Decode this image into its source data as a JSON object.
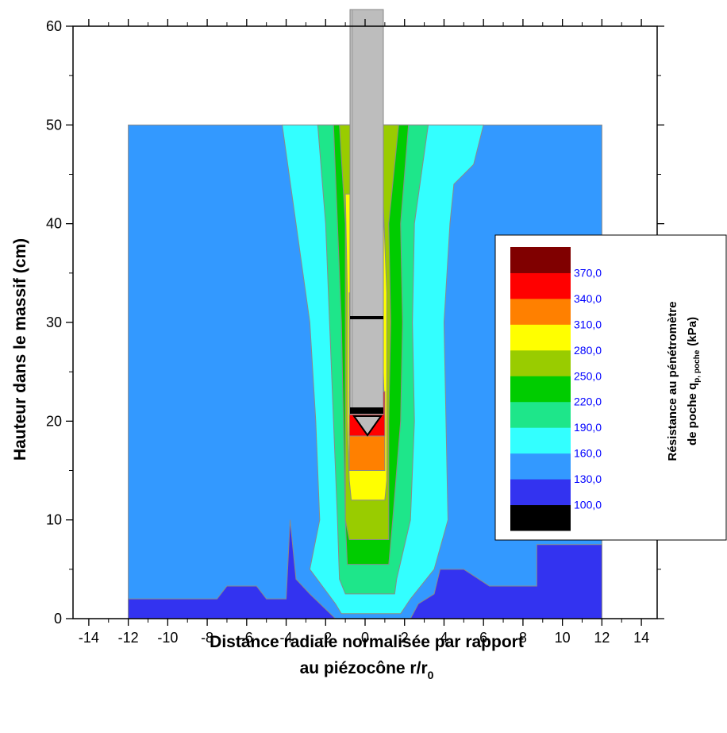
{
  "chart_data": {
    "type": "contour",
    "x_label": [
      "Distance radiale normalisée par rapport",
      "au piézocône r/r",
      "0"
    ],
    "y_label": "Hauteur dans le massif (cm)",
    "xlim": [
      -14.8,
      14.8
    ],
    "ylim": [
      0,
      60
    ],
    "xticks": [
      -14,
      -12,
      -10,
      -8,
      -6,
      -4,
      -2,
      0,
      2,
      4,
      6,
      8,
      10,
      12,
      14
    ],
    "yticks": [
      0,
      10,
      20,
      30,
      40,
      50,
      60
    ],
    "colorbar": {
      "title": [
        "Résistance au pénétromètre",
        "de poche q",
        "p, poche",
        "(kPa)"
      ],
      "levels": [
        {
          "value": 100,
          "label": "100,0"
        },
        {
          "value": 130,
          "label": "130,0"
        },
        {
          "value": 160,
          "label": "160,0"
        },
        {
          "value": 190,
          "label": "190,0"
        },
        {
          "value": 220,
          "label": "220,0"
        },
        {
          "value": 250,
          "label": "250,0"
        },
        {
          "value": 280,
          "label": "280,0"
        },
        {
          "value": 310,
          "label": "310,0"
        },
        {
          "value": 340,
          "label": "340,0"
        },
        {
          "value": 370,
          "label": "370,0"
        }
      ],
      "colors": [
        "#000000",
        "#3333f0",
        "#3399ff",
        "#33ffff",
        "#1ee68a",
        "#00cc00",
        "#99cc00",
        "#ffff00",
        "#ff8000",
        "#ff0000",
        "#800000"
      ]
    },
    "regions": [
      {
        "level": 130,
        "x": [
          -12,
          12,
          12,
          -12
        ],
        "y": [
          0,
          0,
          50,
          50
        ]
      },
      {
        "level": 100,
        "x": [
          -12,
          -1.5,
          -2.8,
          -3.5,
          -3.8,
          -4,
          -5,
          -5.5,
          -7,
          -7.5,
          -12
        ],
        "y": [
          0,
          0,
          2.5,
          4,
          10,
          2,
          2,
          3.3,
          3.3,
          2,
          2
        ]
      },
      {
        "level": 100,
        "x": [
          2.3,
          12,
          12,
          8.7,
          8.7,
          6.3,
          5,
          3.8,
          3.5,
          2.7
        ],
        "y": [
          0,
          0,
          7.5,
          7.5,
          3.3,
          3.3,
          5,
          5,
          2.5,
          1.5
        ]
      },
      {
        "level": 160,
        "x": [
          -4.2,
          -3.5,
          -2.8,
          -2.5,
          -2.3,
          -2.8,
          -1.5,
          -1.2,
          1.8,
          2.3,
          3.5,
          4.2,
          4.1,
          4,
          4.3,
          4.5,
          5.5,
          6
        ],
        "y": [
          50,
          40,
          30,
          20,
          10,
          5,
          1.5,
          0.5,
          0.5,
          2,
          5,
          10,
          20,
          30,
          40,
          44,
          46,
          50
        ]
      },
      {
        "level": 190,
        "x": [
          -2.4,
          -2,
          -1.8,
          -1.6,
          -1.4,
          -1.3,
          -1,
          1.5,
          1.6,
          2.3,
          2.5,
          2.4,
          2.5,
          3.2
        ],
        "y": [
          50,
          40,
          30,
          20,
          10,
          4,
          2.5,
          2.5,
          4,
          10,
          20,
          30,
          40,
          50
        ]
      },
      {
        "level": 220,
        "x": [
          -1.6,
          -1.4,
          -1.2,
          -1.1,
          -1,
          -0.9,
          1.2,
          1.4,
          1.8,
          1.9,
          1.8,
          2.2
        ],
        "y": [
          50,
          40,
          30,
          20,
          10,
          5.5,
          5.5,
          10,
          20,
          30,
          40,
          50
        ]
      },
      {
        "level": 250,
        "x": [
          -1.3,
          -1,
          -1,
          -1,
          -1,
          -0.8,
          1.2,
          1.2,
          1.2,
          1.3,
          1.2,
          1.7
        ],
        "y": [
          50,
          40,
          30,
          20,
          10,
          8,
          8,
          10,
          20,
          30,
          40,
          50
        ]
      },
      {
        "level": 280,
        "x": [
          -1,
          -0.9,
          -0.9,
          -0.8,
          -0.7,
          1,
          1.1,
          1.1,
          1.1,
          0.9
        ],
        "y": [
          43,
          33,
          20,
          14,
          12,
          12,
          14,
          20,
          33,
          43
        ]
      },
      {
        "level": 310,
        "x": [
          -0.8,
          -0.8,
          -0.8,
          1,
          1,
          0.8
        ],
        "y": [
          33,
          20,
          15,
          15,
          20,
          33
        ]
      },
      {
        "level": 340,
        "x": [
          -0.8,
          -0.8,
          1,
          1
        ],
        "y": [
          23,
          18.5,
          18.5,
          23
        ]
      }
    ]
  }
}
